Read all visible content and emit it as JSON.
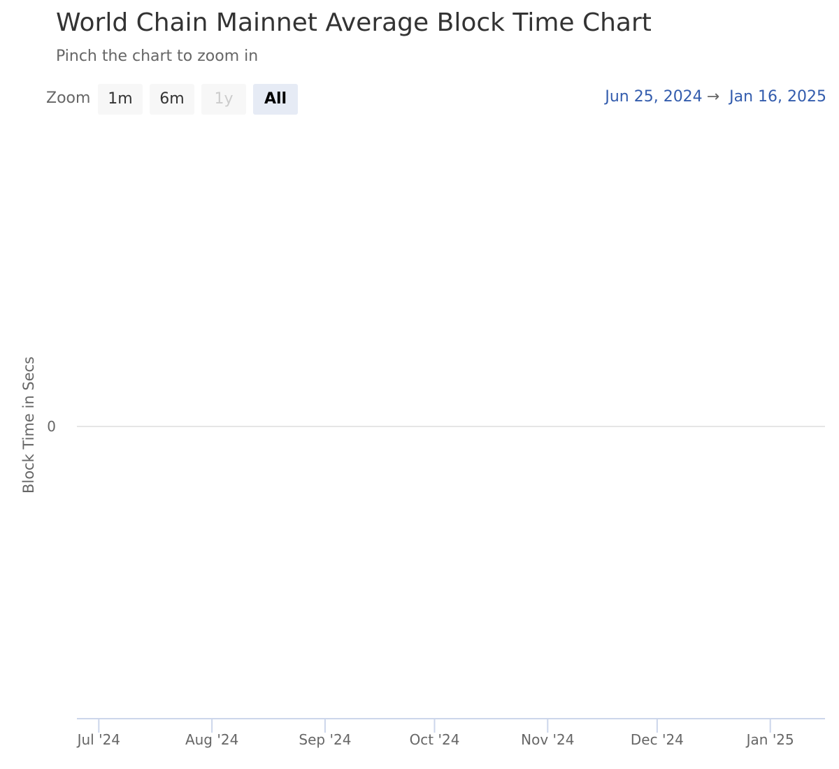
{
  "chart_data": {
    "type": "line",
    "title": "World Chain Mainnet Average Block Time Chart",
    "subtitle": "Pinch the chart to zoom in",
    "ylabel": "Block Time in Secs",
    "y_ticks": [
      0
    ],
    "x_ticks": [
      "Jul '24",
      "Aug '24",
      "Sep '24",
      "Oct '24",
      "Nov '24",
      "Dec '24",
      "Jan '25"
    ],
    "x_tick_dates": [
      "2024-07-01",
      "2024-08-01",
      "2024-09-01",
      "2024-10-01",
      "2024-11-01",
      "2024-12-01",
      "2025-01-01"
    ],
    "xlim": [
      "2024-06-25",
      "2025-01-16"
    ],
    "grid": true,
    "series": []
  },
  "zoom": {
    "label": "Zoom",
    "buttons": [
      {
        "label": "1m",
        "state": "normal"
      },
      {
        "label": "6m",
        "state": "normal"
      },
      {
        "label": "1y",
        "state": "disabled"
      },
      {
        "label": "All",
        "state": "active"
      }
    ]
  },
  "range": {
    "from": "Jun 25, 2024",
    "arrow": "→",
    "to": "Jan 16, 2025"
  },
  "colors": {
    "grid": "#e6e6e6",
    "axis": "#ccd6eb",
    "text": "#666666",
    "title": "#333333",
    "range": "#335cad"
  }
}
